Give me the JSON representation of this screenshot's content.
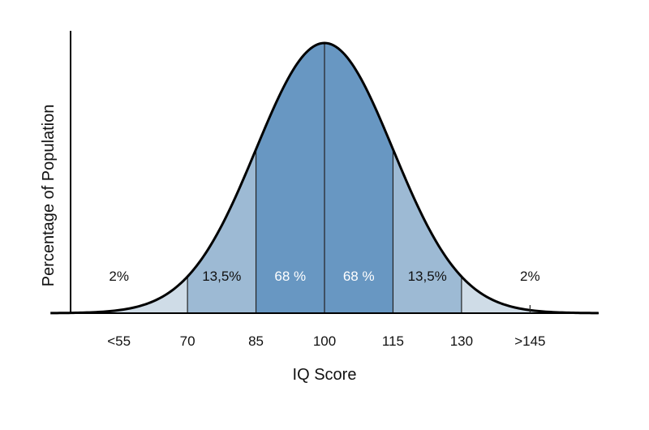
{
  "chart_data": {
    "type": "area",
    "title": "",
    "xlabel": "IQ Score",
    "ylabel": "Percentage of Population",
    "distribution": {
      "mean": 100,
      "sd": 15
    },
    "xlim": [
      40,
      160
    ],
    "x_ticks": [
      {
        "value": 145,
        "label": ">145",
        "tick_mark": true
      },
      {
        "value": 130,
        "label": "130",
        "tick_mark": false
      },
      {
        "value": 115,
        "label": "115",
        "tick_mark": false
      },
      {
        "value": 100,
        "label": "100",
        "tick_mark": false
      },
      {
        "value": 85,
        "label": "85",
        "tick_mark": false
      },
      {
        "value": 70,
        "label": "70",
        "tick_mark": false
      },
      {
        "value": 55,
        "label": "<55",
        "tick_mark": false
      }
    ],
    "regions": [
      {
        "from": 40,
        "to": 70,
        "label": "2%",
        "label_x": 55,
        "fill": "#cfdce7",
        "text_color": "#111111"
      },
      {
        "from": 70,
        "to": 85,
        "label": "13,5%",
        "label_x": 77.5,
        "fill": "#9dbad4",
        "text_color": "#111111"
      },
      {
        "from": 85,
        "to": 100,
        "label": "68 %",
        "label_x": 92.5,
        "fill": "#6897c2",
        "text_color": "#ffffff"
      },
      {
        "from": 100,
        "to": 115,
        "label": "68 %",
        "label_x": 107.5,
        "fill": "#6897c2",
        "text_color": "#ffffff"
      },
      {
        "from": 115,
        "to": 130,
        "label": "13,5%",
        "label_x": 122.5,
        "fill": "#9dbad4",
        "text_color": "#111111"
      },
      {
        "from": 130,
        "to": 160,
        "label": "2%",
        "label_x": 145,
        "fill": "#cfdce7",
        "text_color": "#111111"
      }
    ],
    "grid": false,
    "legend": "none"
  }
}
